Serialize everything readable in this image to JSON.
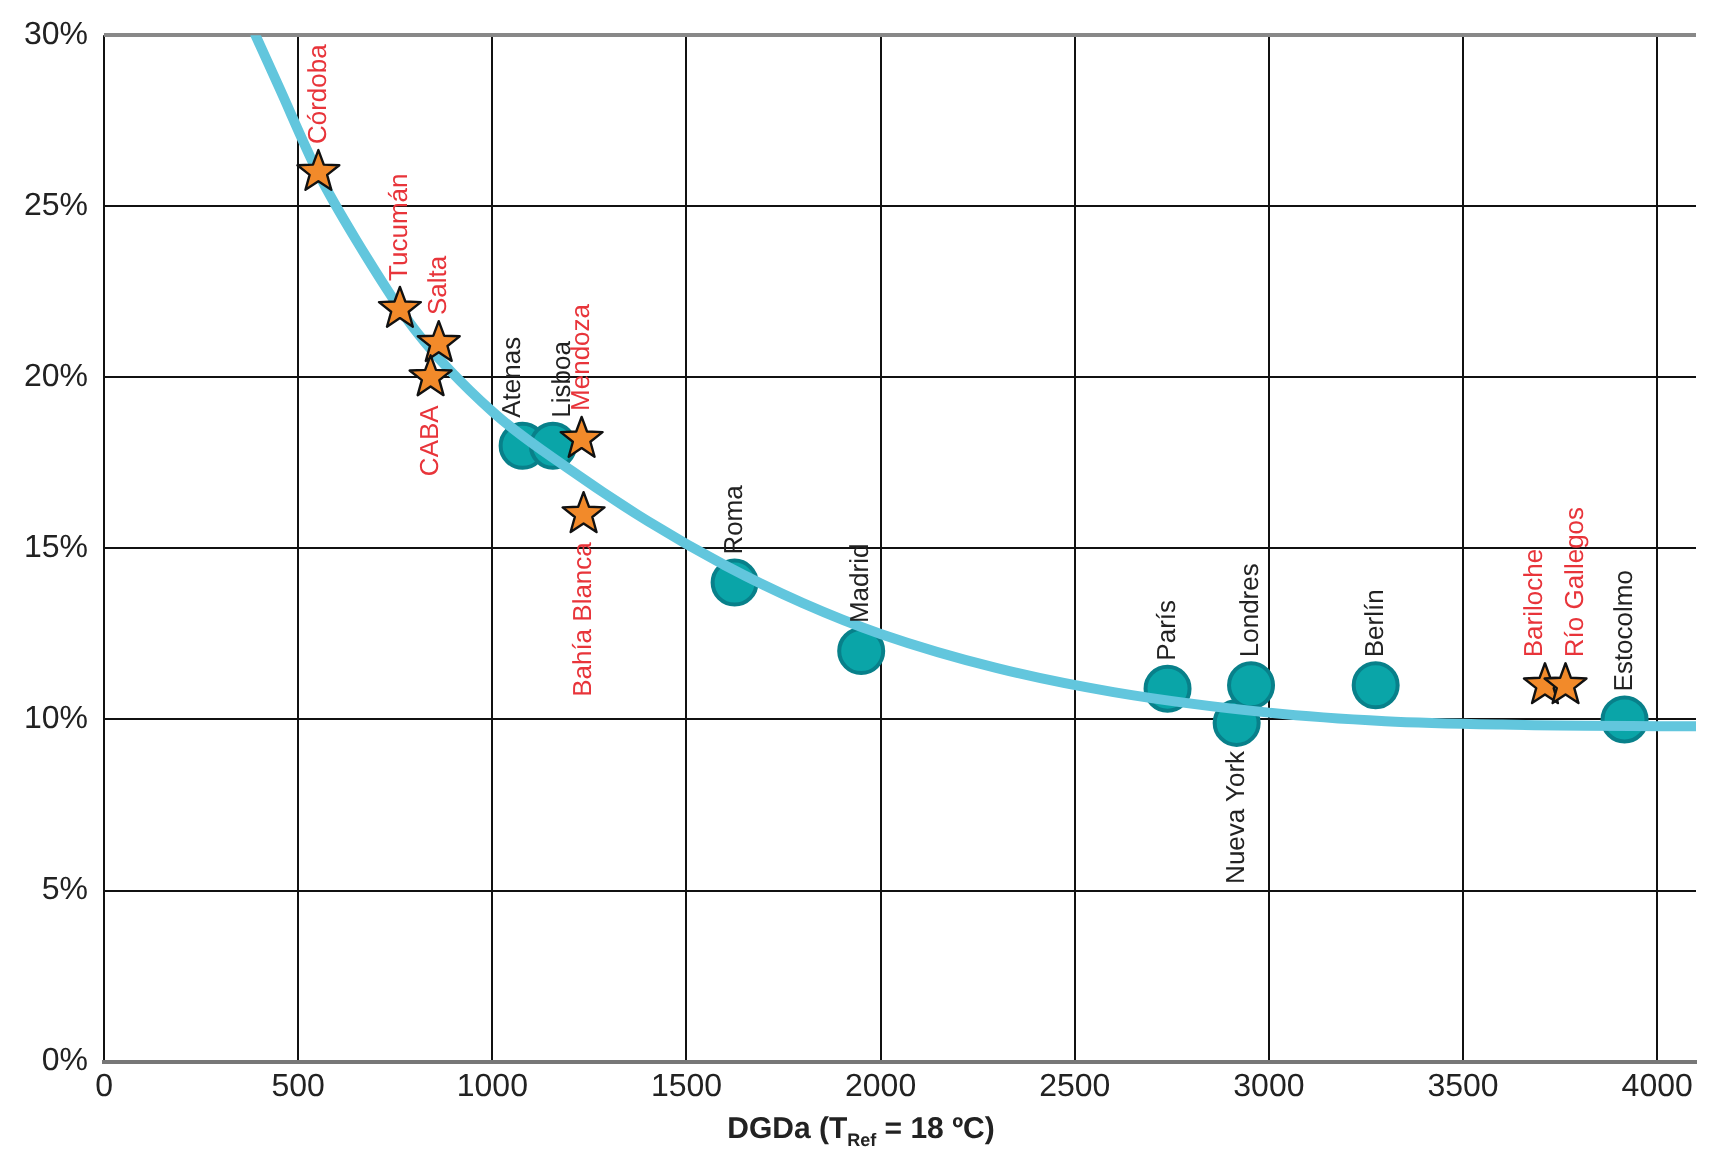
{
  "chart_data": {
    "type": "scatter",
    "xlabel": "DGDa (T$_{Ref}$ = 18 ºC)",
    "xlim": [
      0,
      4100
    ],
    "xticks": [
      0,
      500,
      1000,
      1500,
      2000,
      2500,
      3000,
      3500,
      4000
    ],
    "ylim": [
      0,
      30
    ],
    "yticks": [
      {
        "value": 0,
        "label": "0%"
      },
      {
        "value": 5,
        "label": "5%"
      },
      {
        "value": 10,
        "label": "10%"
      },
      {
        "value": 15,
        "label": "15%"
      },
      {
        "value": 20,
        "label": "20%"
      },
      {
        "value": 25,
        "label": "25%"
      },
      {
        "value": 30,
        "label": "30%"
      }
    ],
    "grid": true,
    "legend": false,
    "series": [
      {
        "type": "line",
        "color": "#62c6dd",
        "marker": "none",
        "x": [
          390,
          450,
          550,
          650,
          800,
          1000,
          1200,
          1400,
          1600,
          1800,
          2000,
          2300,
          2600,
          3000,
          3300,
          3600,
          4100
        ],
        "values": [
          30,
          28.5,
          26,
          24,
          21.4,
          19,
          17.3,
          15.8,
          14.5,
          13.4,
          12.5,
          11.5,
          10.8,
          10.2,
          9.95,
          9.85,
          9.8
        ]
      },
      {
        "color": "#f28a2a",
        "marker": "star",
        "x": [
          552,
          762,
          862,
          841,
          1230,
          1235,
          3711,
          3764
        ],
        "values": [
          26,
          22,
          21,
          20,
          18.2,
          16,
          11,
          11
        ]
      },
      {
        "color": "#0aa5a8",
        "marker": "circle",
        "x": [
          1078,
          1156,
          1624,
          1950,
          2739,
          2917,
          2954,
          3275,
          3916
        ],
        "values": [
          18,
          18,
          14,
          12,
          10.9,
          9.9,
          11,
          11,
          10
        ]
      }
    ],
    "annotations": [
      {
        "text": "Córdoba",
        "x": 552,
        "y": 26
      },
      {
        "text": "Tucumán",
        "x": 762,
        "y": 22
      },
      {
        "text": "Salta",
        "x": 862,
        "y": 21
      },
      {
        "text": "CABA",
        "x": 841,
        "y": 20
      },
      {
        "text": "Mendoza",
        "x": 1230,
        "y": 18.2
      },
      {
        "text": "Bahía Blanca",
        "x": 1235,
        "y": 16
      },
      {
        "text": "Bariloche",
        "x": 3711,
        "y": 11
      },
      {
        "text": "Río Gallegos",
        "x": 3764,
        "y": 11
      },
      {
        "text": "Atenas",
        "x": 1078,
        "y": 18
      },
      {
        "text": "Lisboa",
        "x": 1156,
        "y": 18
      },
      {
        "text": "Roma",
        "x": 1624,
        "y": 14
      },
      {
        "text": "Madrid",
        "x": 1950,
        "y": 12
      },
      {
        "text": "París",
        "x": 2739,
        "y": 10.9
      },
      {
        "text": "Nueva York",
        "x": 2917,
        "y": 9.9
      },
      {
        "text": "Londres",
        "x": 2954,
        "y": 11
      },
      {
        "text": "Berlín",
        "x": 3275,
        "y": 11
      },
      {
        "text": "Estocolmo",
        "x": 3916,
        "y": 10
      }
    ]
  }
}
